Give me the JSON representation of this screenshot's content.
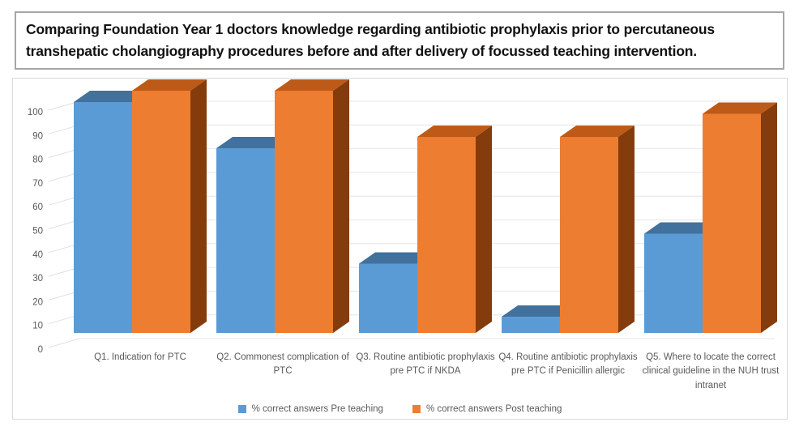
{
  "title": "Comparing Foundation Year 1 doctors knowledge regarding antibiotic prophylaxis prior to percutaneous transhepatic cholangiography procedures before and after delivery of focussed teaching intervention.",
  "chart_data": {
    "type": "bar",
    "subtype": "3d-clustered-column",
    "title": "",
    "xlabel": "",
    "ylabel": "",
    "ylim": [
      0,
      100
    ],
    "y_ticks": [
      0,
      10,
      20,
      30,
      40,
      50,
      60,
      70,
      80,
      90,
      100
    ],
    "grid": true,
    "legend_position": "bottom",
    "categories": [
      "Q1. Indication for PTC",
      "Q2. Commonest complication of PTC",
      "Q3. Routine antibiotic prophylaxis pre PTC if NKDA",
      "Q4. Routine antibiotic prophylaxis pre PTC if Penicillin allergic",
      "Q5. Where to locate the correct clinical guideline in the NUH trust intranet"
    ],
    "series": [
      {
        "name": "% correct answers Pre teaching",
        "color": "#5B9BD5",
        "color_top": "#41719C",
        "values": [
          100,
          80,
          30,
          7,
          43
        ]
      },
      {
        "name": "% correct answers Post teaching",
        "color": "#ED7D31",
        "color_top": "#BE5A17",
        "color_side": "#843C0C",
        "values": [
          100,
          100,
          80,
          80,
          90
        ]
      }
    ]
  }
}
